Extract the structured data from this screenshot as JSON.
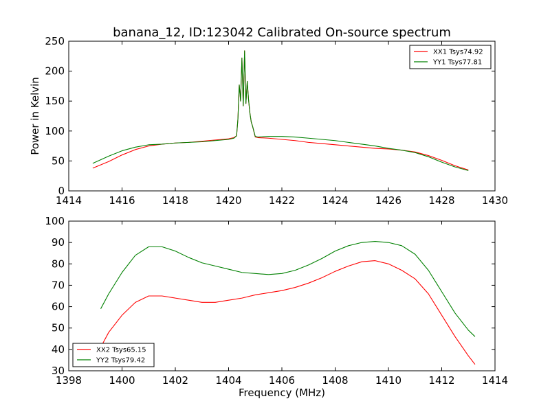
{
  "figure": {
    "title": "banana_12, ID:123042 Calibrated On-source spectrum"
  },
  "chart_data": [
    {
      "type": "line",
      "ylabel": "Power in Kelvin",
      "xlabel": "",
      "xlim": [
        1414,
        1430
      ],
      "ylim": [
        0,
        250
      ],
      "xticks": [
        1414,
        1416,
        1418,
        1420,
        1422,
        1424,
        1426,
        1428,
        1430
      ],
      "yticks": [
        0,
        50,
        100,
        150,
        200,
        250
      ],
      "legend_position": "top-right",
      "series": [
        {
          "name": "XX1 Tsys74.92",
          "color": "#ff0000",
          "x": [
            1414.9,
            1415.5,
            1416,
            1416.5,
            1417,
            1417.5,
            1418,
            1418.5,
            1419,
            1419.5,
            1420,
            1420.2,
            1420.3,
            1420.35,
            1420.4,
            1420.45,
            1420.5,
            1420.55,
            1420.6,
            1420.65,
            1420.7,
            1420.75,
            1420.8,
            1420.85,
            1420.9,
            1421.0,
            1421.1,
            1421.5,
            1422,
            1422.5,
            1423,
            1423.5,
            1424,
            1424.5,
            1425,
            1425.5,
            1426,
            1426.5,
            1427,
            1427.5,
            1428,
            1428.5,
            1429
          ],
          "values": [
            38,
            49,
            60,
            69,
            75,
            78,
            80,
            81,
            83,
            85,
            87,
            89,
            92,
            120,
            177,
            150,
            222,
            142,
            234,
            146,
            183,
            152,
            130,
            115,
            108,
            90,
            89,
            88,
            86,
            84,
            81,
            79,
            77,
            75,
            73,
            71,
            70,
            68,
            65,
            59,
            51,
            42,
            35
          ]
        },
        {
          "name": "YY1 Tsys77.81",
          "color": "#008000",
          "x": [
            1414.9,
            1415.5,
            1416,
            1416.5,
            1417,
            1417.5,
            1418,
            1418.5,
            1419,
            1419.5,
            1420,
            1420.2,
            1420.3,
            1420.35,
            1420.4,
            1420.45,
            1420.5,
            1420.55,
            1420.6,
            1420.65,
            1420.7,
            1420.75,
            1420.8,
            1420.85,
            1420.9,
            1421.0,
            1421.1,
            1421.5,
            1422,
            1422.5,
            1423,
            1423.5,
            1424,
            1424.5,
            1425,
            1425.5,
            1426,
            1426.5,
            1427,
            1427.5,
            1428,
            1428.5,
            1429
          ],
          "values": [
            46,
            58,
            67,
            73,
            77,
            78,
            80,
            81,
            82,
            84,
            86,
            88,
            92,
            120,
            177,
            150,
            222,
            142,
            234,
            146,
            183,
            152,
            130,
            115,
            108,
            91,
            90,
            91,
            91,
            90,
            88,
            86,
            84,
            81,
            78,
            75,
            71,
            68,
            64,
            57,
            48,
            40,
            34
          ]
        }
      ]
    },
    {
      "type": "line",
      "xlabel": "Frequency (MHz)",
      "ylabel": "",
      "xlim": [
        1398,
        1414
      ],
      "ylim": [
        30,
        100
      ],
      "xticks": [
        1398,
        1400,
        1402,
        1404,
        1406,
        1408,
        1410,
        1412,
        1414
      ],
      "yticks": [
        30,
        40,
        50,
        60,
        70,
        80,
        90,
        100
      ],
      "legend_position": "bottom-left",
      "series": [
        {
          "name": "XX2 Tsys65.15",
          "color": "#ff0000",
          "x": [
            1399.2,
            1399.5,
            1400,
            1400.5,
            1401,
            1401.5,
            1402,
            1402.5,
            1403,
            1403.5,
            1404,
            1404.5,
            1405,
            1405.5,
            1406,
            1406.5,
            1407,
            1407.5,
            1408,
            1408.5,
            1409,
            1409.5,
            1410,
            1410.5,
            1411,
            1411.5,
            1412,
            1412.5,
            1413,
            1413.25
          ],
          "values": [
            41,
            48,
            56,
            62,
            65,
            65,
            64,
            63,
            62,
            62,
            63,
            64,
            65.5,
            66.5,
            67.5,
            69,
            71,
            73.5,
            76.5,
            79,
            81,
            81.5,
            80,
            77,
            73,
            66,
            56,
            46,
            37,
            33
          ]
        },
        {
          "name": "YY2 Tsys79.42",
          "color": "#008000",
          "x": [
            1399.2,
            1399.5,
            1400,
            1400.5,
            1401,
            1401.5,
            1402,
            1402.5,
            1403,
            1403.5,
            1404,
            1404.5,
            1405,
            1405.5,
            1406,
            1406.5,
            1407,
            1407.5,
            1408,
            1408.5,
            1409,
            1409.5,
            1410,
            1410.5,
            1411,
            1411.5,
            1412,
            1412.5,
            1413,
            1413.25
          ],
          "values": [
            59,
            66,
            76,
            84,
            88,
            88,
            86,
            83,
            80.5,
            79,
            77.5,
            76,
            75.5,
            75,
            75.5,
            77,
            79.5,
            82.5,
            86,
            88.5,
            90,
            90.5,
            90,
            88.5,
            84.5,
            77,
            67,
            57,
            49,
            46
          ]
        }
      ]
    }
  ]
}
